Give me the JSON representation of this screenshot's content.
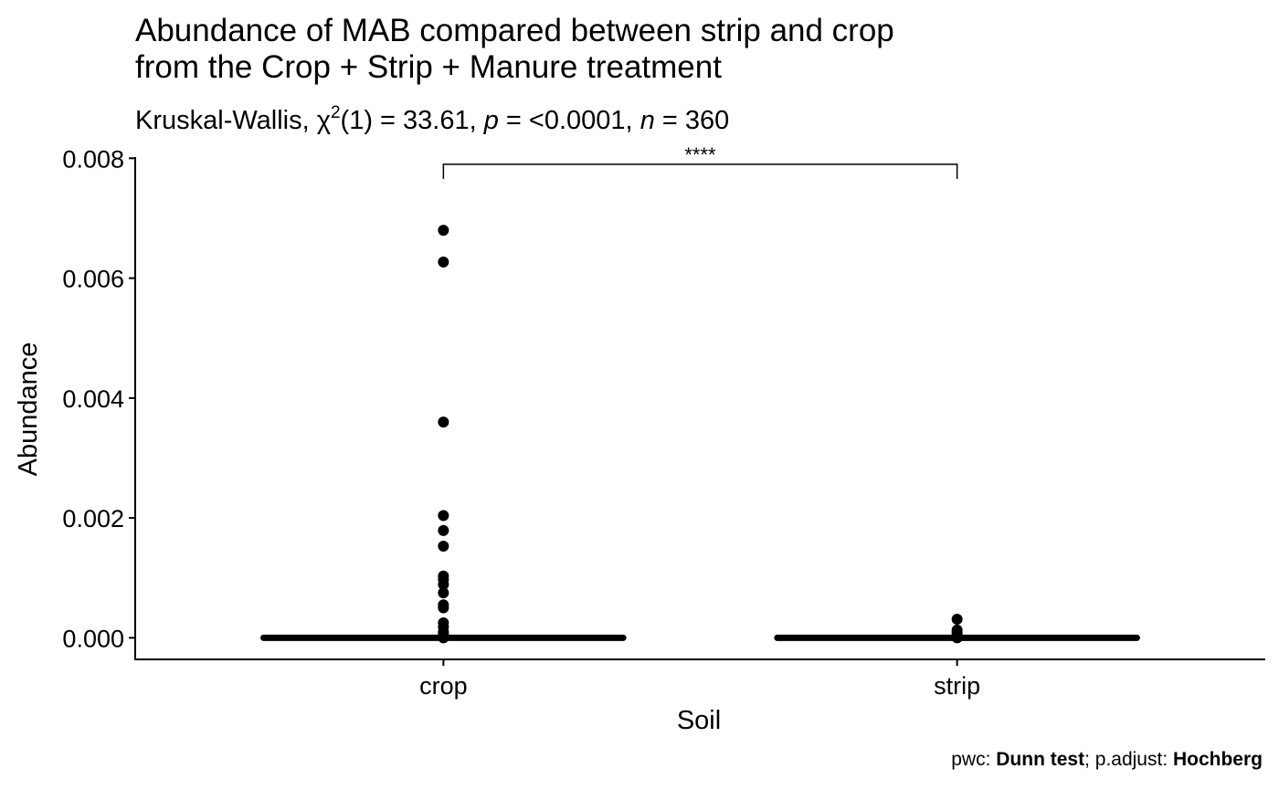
{
  "chart_data": {
    "type": "scatter",
    "title": [
      "Abundance of MAB compared between strip and crop",
      "from the Crop + Strip + Manure treatment"
    ],
    "subtitle": {
      "prefix": "Kruskal-Wallis, ",
      "chi": "χ",
      "chi_sup": "2",
      "stat": "(1) = 33.61, ",
      "p_label": "p",
      "p_value": " = <0.0001, ",
      "n_label": "n",
      "n_value": " = 360"
    },
    "xlabel": "Soil",
    "ylabel": "Abundance",
    "categories": [
      "crop",
      "strip"
    ],
    "ylim": [
      -0.00036,
      0.00802
    ],
    "yticks": [
      0.0,
      0.002,
      0.004,
      0.006,
      0.008
    ],
    "ytick_labels": [
      "0.000",
      "0.002",
      "0.004",
      "0.006",
      "0.008"
    ],
    "series": [
      {
        "category": "crop",
        "points": [
          0.0068,
          0.00627,
          0.0036,
          0.00204,
          0.00179,
          0.00153,
          0.00103,
          0.00097,
          0.00089,
          0.00075,
          0.00055,
          0.0005,
          0.00025,
          0.00018,
          0.0001,
          6e-05,
          3e-05,
          0.0
        ],
        "zero_band_halfwidth": 0.35
      },
      {
        "category": "strip",
        "points": [
          0.00031,
          0.00013,
          9e-05,
          5e-05,
          2e-05,
          0.0
        ],
        "zero_band_halfwidth": 0.35
      }
    ],
    "significance": {
      "from": "crop",
      "to": "strip",
      "y": 0.0079,
      "label": "****"
    },
    "caption": {
      "prefix": "pwc: ",
      "test": "Dunn test",
      "mid": "; p.adjust: ",
      "method": "Hochberg"
    },
    "colors": {
      "points": "#000000",
      "axis": "#000000",
      "background": "#ffffff"
    }
  }
}
